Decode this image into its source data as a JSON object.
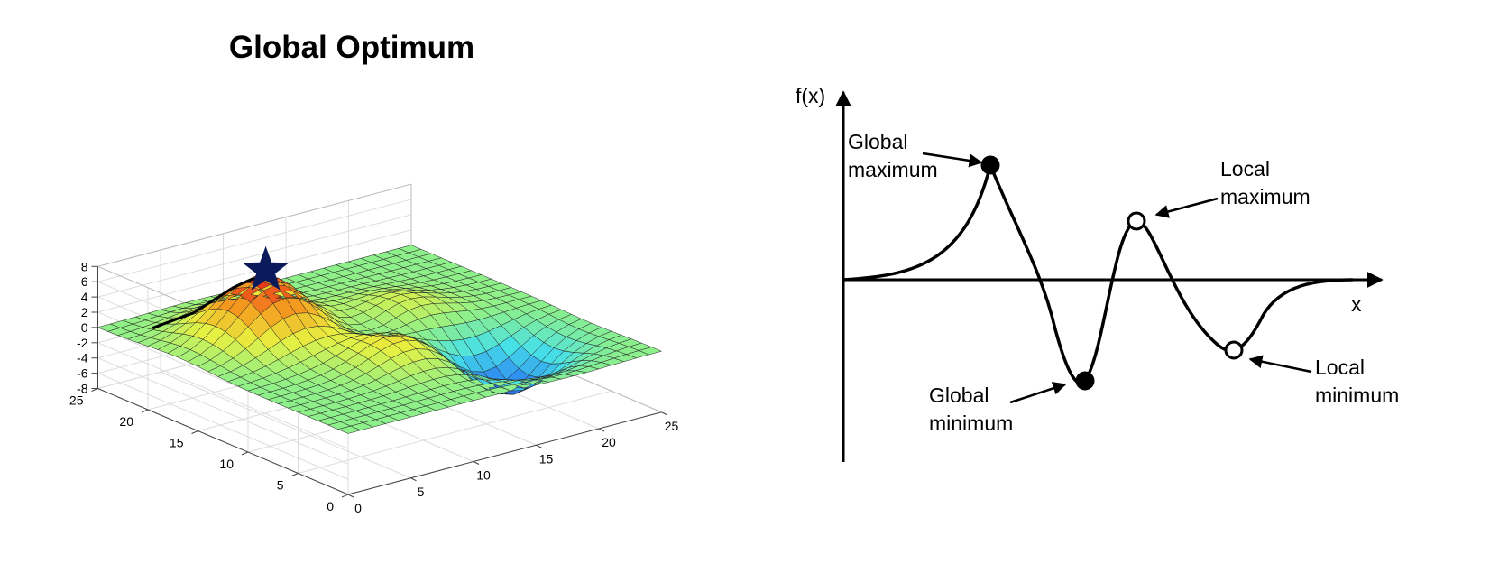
{
  "title": "Global Optimum",
  "chart_data": [
    {
      "type": "surface",
      "title": "Global Optimum",
      "x_ticks": [
        "0",
        "5",
        "10",
        "15",
        "20",
        "25"
      ],
      "y_ticks": [
        "0",
        "5",
        "10",
        "15",
        "20",
        "25"
      ],
      "z_ticks": [
        "-8",
        "-6",
        "-4",
        "-2",
        "0",
        "2",
        "4",
        "6",
        "8"
      ],
      "xlim": [
        0,
        25
      ],
      "ylim": [
        0,
        25
      ],
      "zlim": [
        -8,
        8
      ],
      "grid": true,
      "colormap": [
        "#1f2fe0",
        "#2f8ff0",
        "#46e0e8",
        "#8ef08a",
        "#e8f040",
        "#f5a020",
        "#e82818"
      ],
      "peaks": [
        {
          "x": 7,
          "y": 17,
          "z": 8.1
        },
        {
          "x": 11,
          "y": 9,
          "z": 3.6
        },
        {
          "x": 16,
          "y": 15,
          "z": 3.0
        },
        {
          "x": 13,
          "y": 14,
          "z": -2.5
        },
        {
          "x": 18,
          "y": 7,
          "z": -6.5
        }
      ],
      "optimum_marker": "star",
      "optimum_color": "#0a1a5a",
      "gradient_path": [
        [
          2.2,
          22.3
        ],
        [
          4.3,
          20.8
        ],
        [
          5.2,
          19.5
        ],
        [
          5.6,
          18.6
        ],
        [
          5.9,
          17.9
        ],
        [
          6.4,
          17.5
        ],
        [
          7.2,
          16.6
        ],
        [
          7.6,
          16.6
        ]
      ]
    },
    {
      "type": "line",
      "ylabel": "f(x)",
      "xlabel": "x",
      "annotations": [
        {
          "id": "global_max",
          "label": [
            "Global",
            "maximum"
          ],
          "x": 0.14,
          "y": 1.0,
          "marker": "filled"
        },
        {
          "id": "local_max",
          "label": [
            "Local",
            "maximum"
          ],
          "x": 0.27,
          "y": 0.52,
          "marker": "hollow"
        },
        {
          "id": "global_min",
          "label": [
            "Global",
            "minimum"
          ],
          "x": 0.22,
          "y": -0.91,
          "marker": "filled"
        },
        {
          "id": "local_min",
          "label": [
            "Local",
            "minimum"
          ],
          "x": 0.37,
          "y": -0.63,
          "marker": "hollow"
        }
      ]
    }
  ]
}
